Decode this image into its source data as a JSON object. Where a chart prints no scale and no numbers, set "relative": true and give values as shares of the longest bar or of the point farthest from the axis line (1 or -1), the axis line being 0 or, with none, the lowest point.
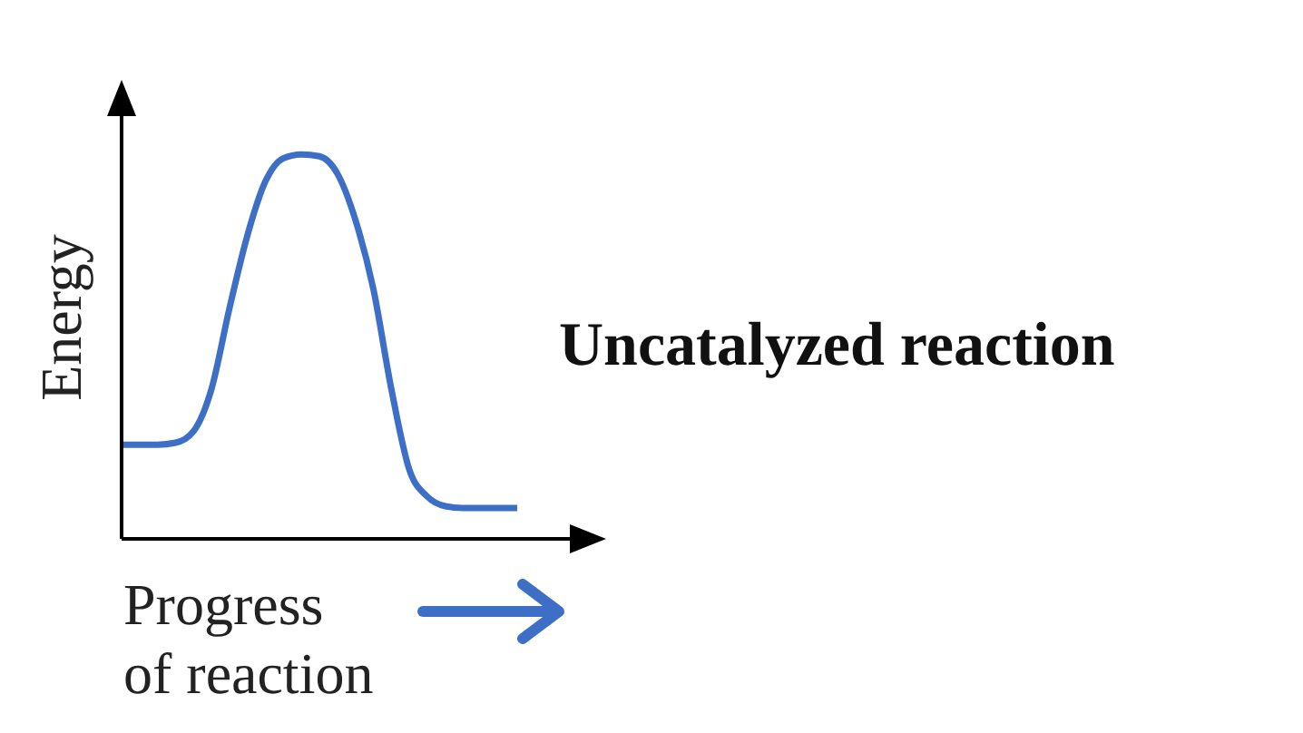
{
  "chart_data": {
    "type": "line",
    "title": "Uncatalyzed reaction",
    "xlabel": "Progress of reaction",
    "ylabel": "Energy",
    "relative": true,
    "categories": [
      null,
      null,
      null,
      null,
      null,
      null,
      null,
      null,
      null,
      null,
      null,
      null,
      null,
      null,
      null,
      null,
      null,
      null,
      null,
      null,
      null,
      null,
      null
    ],
    "series": [
      {
        "color": "#3d6fc6",
        "values": [
          0.245,
          0.245,
          0.245,
          0.25,
          0.28,
          0.39,
          0.6,
          0.79,
          0.93,
          0.99,
          1.0,
          0.995,
          0.95,
          0.83,
          0.65,
          0.39,
          0.18,
          0.11,
          0.085,
          0.08,
          0.08,
          0.08,
          0.08
        ]
      }
    ],
    "grid": false,
    "legend": false,
    "marker": "none",
    "line_style": "solid"
  }
}
